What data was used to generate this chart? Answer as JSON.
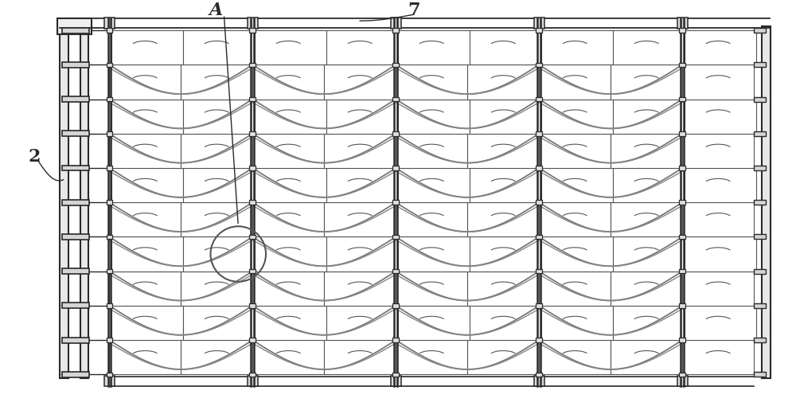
{
  "bg_color": "#ffffff",
  "line_color": "#555555",
  "dark_color": "#2a2a2a",
  "rope_color": "#888888",
  "figure_width": 10.0,
  "figure_height": 5.25,
  "dpi": 100,
  "label_A": "A",
  "label_7": "7",
  "label_2": "2",
  "n_tile_cols": 9,
  "n_row_groups": 5,
  "gx0": 13.5,
  "gx1": 95.0,
  "gy0": 5.5,
  "gy1": 49.0
}
